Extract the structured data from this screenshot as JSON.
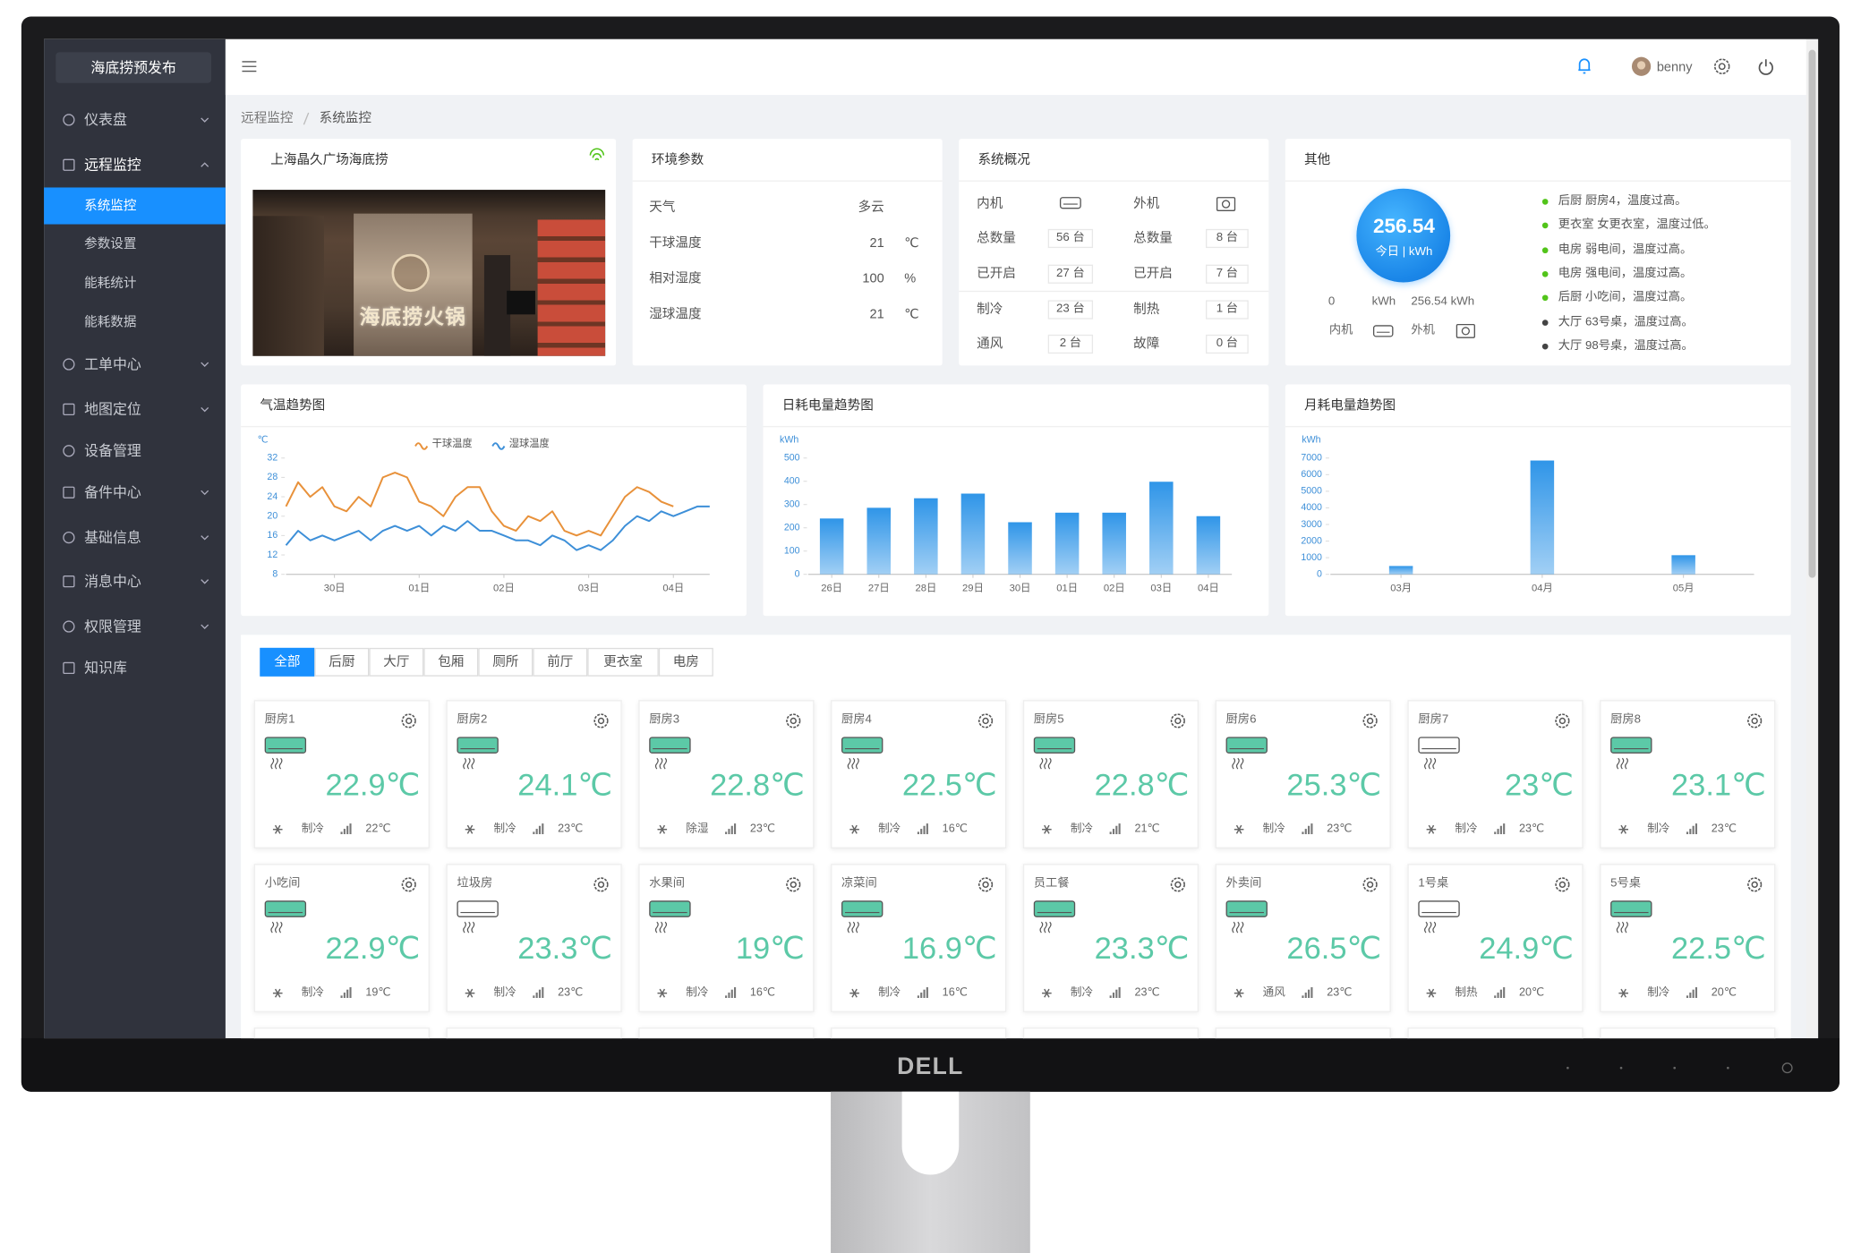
{
  "monitor": {
    "brand": "DELL"
  },
  "sidebar": {
    "logo": "海底捞预发布",
    "menu": [
      {
        "label": "仪表盘",
        "arrow": true
      },
      {
        "label": "远程监控",
        "arrow": true,
        "children": [
          "系统监控",
          "参数设置",
          "能耗统计",
          "能耗数据"
        ]
      },
      {
        "label": "工单中心",
        "arrow": true
      },
      {
        "label": "地图定位",
        "arrow": true
      },
      {
        "label": "设备管理",
        "arrow": false
      },
      {
        "label": "备件中心",
        "arrow": true
      },
      {
        "label": "基础信息",
        "arrow": true
      },
      {
        "label": "消息中心",
        "arrow": true
      },
      {
        "label": "权限管理",
        "arrow": true
      },
      {
        "label": "知识库",
        "arrow": false
      }
    ]
  },
  "header": {
    "user": "benny"
  },
  "breadcrumb": [
    "远程监控",
    "系统监控"
  ],
  "store": {
    "title": "上海晶久广场海底捞",
    "photo_sign": "海底捞火锅"
  },
  "environment": {
    "title": "环境参数",
    "rows": [
      {
        "label": "天气",
        "value": "多云"
      },
      {
        "label": "干球温度",
        "value": "21",
        "unit": "℃"
      },
      {
        "label": "相对湿度",
        "value": "100",
        "unit": "%"
      },
      {
        "label": "湿球温度",
        "value": "21",
        "unit": "℃"
      }
    ]
  },
  "overview": {
    "title": "系统概况",
    "headers": [
      "内机",
      "外机"
    ],
    "rows": [
      [
        "总数量",
        "56 台",
        "总数量",
        "8 台"
      ],
      [
        "已开启",
        "27 台",
        "已开启",
        "7 台"
      ],
      [
        "制冷",
        "23 台",
        "制热",
        "1 台"
      ],
      [
        "通风",
        "2 台",
        "故障",
        "0 台"
      ]
    ]
  },
  "other": {
    "title": "其他",
    "total": "256.54",
    "total_caption": "今日 | kWh",
    "scale_min": "0",
    "scale_unit": "kWh",
    "scale_max": "256.54 kWh",
    "legend": [
      "内机",
      "外机"
    ],
    "alerts": [
      {
        "text": "后厨 厨房4，温度过高。",
        "color": "#52c41a"
      },
      {
        "text": "更衣室 女更衣室，温度过低。",
        "color": "#52c41a"
      },
      {
        "text": "电房 弱电间，温度过高。",
        "color": "#52c41a"
      },
      {
        "text": "电房 强电间，温度过高。",
        "color": "#52c41a"
      },
      {
        "text": "后厨 小吃间，温度过高。",
        "color": "#52c41a"
      },
      {
        "text": "大厅 63号桌，温度过高。",
        "color": "#444444"
      },
      {
        "text": "大厅 98号桌，温度过高。",
        "color": "#444444"
      }
    ]
  },
  "charts": [
    {
      "type": "line",
      "title": "气温趋势图",
      "y_unit": "℃",
      "categories": [
        null,
        null,
        null,
        null,
        "30日",
        null,
        null,
        null,
        null,
        null,
        null,
        "01日",
        null,
        null,
        null,
        null,
        null,
        null,
        "02日",
        null,
        null,
        null,
        null,
        null,
        null,
        "03日",
        null,
        null,
        null,
        null,
        null,
        null,
        "04日",
        null,
        null,
        null
      ],
      "series": [
        {
          "name": "干球温度",
          "color": "#e8913a",
          "values": [
            22,
            27,
            24,
            26,
            22,
            21,
            24,
            22,
            28,
            29,
            28,
            23,
            22,
            20,
            24,
            26,
            26,
            21,
            18,
            17,
            20,
            19,
            21,
            17,
            16,
            17,
            16,
            20,
            24,
            26,
            25,
            23,
            22,
            null,
            null,
            null
          ]
        },
        {
          "name": "湿球温度",
          "color": "#3d8fd8",
          "values": [
            14,
            17,
            15,
            16,
            15,
            16,
            17,
            15,
            17,
            18,
            17,
            18,
            16,
            18,
            17,
            19,
            17,
            17,
            16,
            15,
            15,
            14,
            16,
            15,
            13,
            14,
            13,
            15,
            18,
            20,
            19,
            21,
            20,
            21,
            22,
            22
          ]
        }
      ],
      "ylim": [
        8,
        32
      ],
      "yticks": [
        8,
        12,
        16,
        20,
        24,
        28,
        32
      ]
    },
    {
      "type": "bar",
      "title": "日耗电量趋势图",
      "y_unit": "kWh",
      "categories": [
        "26日",
        "27日",
        "28日",
        "29日",
        "30日",
        "01日",
        "02日",
        "03日",
        "04日"
      ],
      "values": [
        240,
        286,
        327,
        347,
        224,
        265,
        265,
        398,
        250
      ],
      "color": "#2f95e8",
      "ylim": [
        0,
        500
      ],
      "yticks": [
        0,
        100,
        200,
        300,
        400,
        500
      ]
    },
    {
      "type": "bar",
      "title": "月耗电量趋势图",
      "y_unit": "kWh",
      "categories": [
        "03月",
        "04月",
        "05月"
      ],
      "values": [
        500,
        6850,
        1150
      ],
      "color": "#2f95e8",
      "ylim": [
        0,
        7000
      ],
      "yticks": [
        0,
        1000,
        2000,
        3000,
        4000,
        5000,
        6000,
        7000
      ]
    }
  ],
  "tabs": [
    "全部",
    "后厨",
    "大厅",
    "包厢",
    "厕所",
    "前厅",
    "更衣室",
    "电房"
  ],
  "units": [
    {
      "name": "厨房1",
      "temp": "22.9℃",
      "mode": "制冷",
      "setpoint": "22℃",
      "icon_color": "#5cc9a7"
    },
    {
      "name": "厨房2",
      "temp": "24.1℃",
      "mode": "制冷",
      "setpoint": "23℃",
      "icon_color": "#5cc9a7"
    },
    {
      "name": "厨房3",
      "temp": "22.8℃",
      "mode": "除湿",
      "setpoint": "23℃",
      "icon_color": "#5cc9a7"
    },
    {
      "name": "厨房4",
      "temp": "22.5℃",
      "mode": "制冷",
      "setpoint": "16℃",
      "icon_color": "#5cc9a7"
    },
    {
      "name": "厨房5",
      "temp": "22.8℃",
      "mode": "制冷",
      "setpoint": "21℃",
      "icon_color": "#5cc9a7"
    },
    {
      "name": "厨房6",
      "temp": "25.3℃",
      "mode": "制冷",
      "setpoint": "23℃",
      "icon_color": "#5cc9a7"
    },
    {
      "name": "厨房7",
      "temp": "23℃",
      "mode": "制冷",
      "setpoint": "23℃",
      "icon_color": "#ffffff"
    },
    {
      "name": "厨房8",
      "temp": "23.1℃",
      "mode": "制冷",
      "setpoint": "23℃",
      "icon_color": "#5cc9a7"
    },
    {
      "name": "小吃间",
      "temp": "22.9℃",
      "mode": "制冷",
      "setpoint": "19℃",
      "icon_color": "#5cc9a7"
    },
    {
      "name": "垃圾房",
      "temp": "23.3℃",
      "mode": "制冷",
      "setpoint": "23℃",
      "icon_color": "#ffffff"
    },
    {
      "name": "水果间",
      "temp": "19℃",
      "mode": "制冷",
      "setpoint": "16℃",
      "icon_color": "#5cc9a7"
    },
    {
      "name": "凉菜间",
      "temp": "16.9℃",
      "mode": "制冷",
      "setpoint": "16℃",
      "icon_color": "#5cc9a7"
    },
    {
      "name": "员工餐",
      "temp": "23.3℃",
      "mode": "制冷",
      "setpoint": "23℃",
      "icon_color": "#5cc9a7"
    },
    {
      "name": "外卖间",
      "temp": "26.5℃",
      "mode": "通风",
      "setpoint": "23℃",
      "icon_color": "#5cc9a7"
    },
    {
      "name": "1号桌",
      "temp": "24.9℃",
      "mode": "制热",
      "setpoint": "20℃",
      "icon_color": "#ffffff"
    },
    {
      "name": "5号桌",
      "temp": "22.5℃",
      "mode": "制冷",
      "setpoint": "20℃",
      "icon_color": "#5cc9a7"
    }
  ]
}
